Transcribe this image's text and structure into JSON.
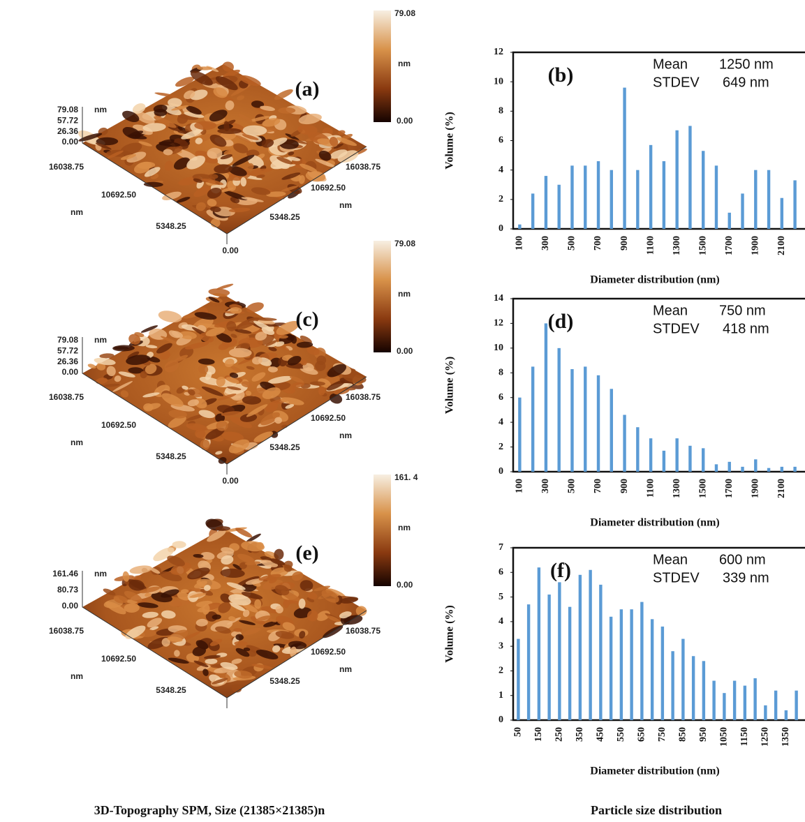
{
  "topography": [
    {
      "label": "(a)",
      "colorbar": {
        "max": "79.08",
        "unit": "nm",
        "min": "0.00"
      },
      "z_ticks": [
        "79.08",
        "57.72",
        "26.36",
        "0.00"
      ],
      "z_unit": "nm",
      "left_ticks": [
        "16038.75",
        "10692.50",
        "5348.25"
      ],
      "left_unit": "nm",
      "origin": "0.00",
      "right_ticks": [
        "16038.75",
        "10692.50",
        "5348.25"
      ],
      "right_unit": "nm"
    },
    {
      "label": "(c)",
      "colorbar": {
        "max": "79.08",
        "unit": "nm",
        "min": "0.00"
      },
      "z_ticks": [
        "79.08",
        "57.72",
        "26.36",
        "0.00"
      ],
      "z_unit": "nm",
      "left_ticks": [
        "16038.75",
        "10692.50",
        "5348.25"
      ],
      "left_unit": "nm",
      "origin": "0.00",
      "right_ticks": [
        "16038.75",
        "10692.50",
        "5348.25"
      ],
      "right_unit": "nm"
    },
    {
      "label": "(e)",
      "colorbar": {
        "max": "161. 4",
        "unit": "nm",
        "min": "0.00"
      },
      "z_ticks": [
        "161.46",
        "80.73",
        "0.00"
      ],
      "z_unit": "nm",
      "left_ticks": [
        "16038.75",
        "10692.50",
        "5348.25"
      ],
      "left_unit": "nm",
      "right_ticks": [
        "16038.75",
        "10692.50",
        "5348.25"
      ],
      "right_unit": "nm"
    }
  ],
  "chart_data": [
    {
      "type": "bar",
      "label": "(b)",
      "annotations": [
        "Mean",
        "1250 nm",
        "STDEV",
        "649 nm"
      ],
      "y_label": "Volume (%)",
      "x_label": "Diameter distribution (nm)",
      "categories": [
        "100",
        null,
        "300",
        null,
        "500",
        null,
        "700",
        null,
        "900",
        null,
        "1100",
        null,
        "1300",
        null,
        "1500",
        null,
        "1700",
        null,
        "1900",
        null,
        "2100",
        null
      ],
      "values": [
        0.3,
        2.4,
        3.6,
        3.0,
        4.3,
        4.3,
        4.6,
        4.0,
        9.6,
        4.0,
        5.7,
        4.6,
        6.7,
        7.0,
        5.3,
        4.3,
        1.1,
        2.4,
        4.0,
        4.0,
        2.1,
        3.3
      ],
      "color": "#5b9bd5",
      "ylim": [
        0,
        12
      ],
      "yticks": [
        0,
        2,
        4,
        6,
        8,
        10,
        12
      ]
    },
    {
      "type": "bar",
      "label": "(d)",
      "annotations": [
        "Mean",
        "750 nm",
        "STDEV",
        "418 nm"
      ],
      "y_label": "Volume (%)",
      "x_label": "Diameter distribution (nm)",
      "categories": [
        "100",
        null,
        "300",
        null,
        "500",
        null,
        "700",
        null,
        "900",
        null,
        "1100",
        null,
        "1300",
        null,
        "1500",
        null,
        "1700",
        null,
        "1900",
        null,
        "2100",
        null
      ],
      "values": [
        6.0,
        8.5,
        12.0,
        10.0,
        8.3,
        8.5,
        7.8,
        6.7,
        4.6,
        3.6,
        2.7,
        1.7,
        2.7,
        2.1,
        1.9,
        0.6,
        0.8,
        0.4,
        1.0,
        0.3,
        0.4,
        0.4
      ],
      "color": "#5b9bd5",
      "ylim": [
        0,
        14
      ],
      "yticks": [
        0,
        2,
        4,
        6,
        8,
        10,
        12,
        14
      ]
    },
    {
      "type": "bar",
      "label": "(f)",
      "annotations": [
        "Mean",
        "600 nm",
        "STDEV",
        "339 nm"
      ],
      "y_label": "Volume (%)",
      "x_label": "Diameter distribution (nm)",
      "categories": [
        "50",
        null,
        "150",
        null,
        "250",
        null,
        "350",
        null,
        "450",
        null,
        "550",
        null,
        "650",
        null,
        "750",
        null,
        "850",
        null,
        "950",
        null,
        "1050",
        null,
        "1150",
        null,
        "1250",
        null,
        "1350",
        null
      ],
      "values": [
        3.3,
        4.7,
        6.2,
        5.1,
        5.6,
        4.6,
        5.9,
        6.1,
        5.5,
        4.2,
        4.5,
        4.5,
        4.8,
        4.1,
        3.8,
        2.8,
        3.3,
        2.6,
        2.4,
        1.6,
        1.1,
        1.6,
        1.4,
        1.7,
        0.6,
        1.2,
        0.4,
        1.2
      ],
      "color": "#5b9bd5",
      "ylim": [
        0,
        7
      ],
      "yticks": [
        0,
        1,
        2,
        3,
        4,
        5,
        6,
        7
      ]
    }
  ],
  "captions": {
    "left": "3D-Topography SPM, Size (21385×21385)n",
    "right": "Particle size distribution"
  }
}
